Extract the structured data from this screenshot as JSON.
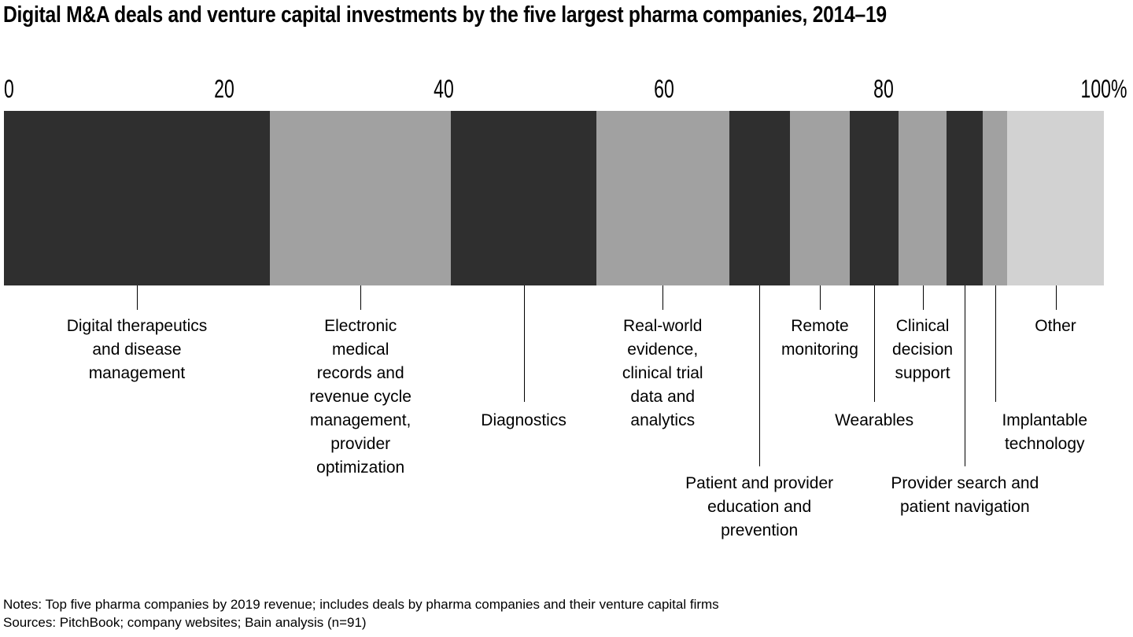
{
  "title": "Digital M&A deals and venture capital investments by the five largest pharma companies, 2014–19",
  "footer": {
    "notes": "Notes: Top five pharma companies by 2019 revenue; includes deals by pharma companies and their venture capital firms",
    "sources": "Sources: PitchBook; company websites; Bain analysis (n=91)"
  },
  "palette": {
    "dark": "#2f2f2f",
    "gray": "#a1a1a1",
    "light": "#d2d2d2"
  },
  "chart_data": {
    "type": "bar",
    "subtype": "horizontal-stacked-100-percent",
    "title": "Digital M&A deals and venture capital investments by the five largest pharma companies, 2014–19",
    "xlabel": "",
    "ylabel": "",
    "xlim": [
      0,
      100
    ],
    "grid": false,
    "legend_position": "below-bar-callout-labels",
    "axis_ticks": [
      {
        "label": "0",
        "value": 0
      },
      {
        "label": "20",
        "value": 20
      },
      {
        "label": "40",
        "value": 40
      },
      {
        "label": "60",
        "value": 60
      },
      {
        "label": "80",
        "value": 80
      },
      {
        "label": "100%",
        "value": 100
      }
    ],
    "categories": [
      "Digital therapeutics and disease management",
      "Electronic medical records and revenue cycle management, provider optimization",
      "Diagnostics",
      "Real-world evidence, clinical trial data and analytics",
      "Patient and provider education and prevention",
      "Remote monitoring",
      "Wearables",
      "Clinical decision support",
      "Provider search and patient navigation",
      "Implantable technology",
      "Other"
    ],
    "values": [
      24.2,
      16.5,
      13.2,
      12.1,
      5.5,
      5.5,
      4.4,
      4.4,
      3.3,
      2.2,
      8.8
    ],
    "segments": [
      {
        "label": "Digital therapeutics and disease management",
        "value": 24.2,
        "color": "dark",
        "row": 1,
        "dx": 0,
        "lines": [
          "Digital therapeutics",
          "and disease",
          "management"
        ]
      },
      {
        "label": "Electronic medical records and revenue cycle management, provider optimization",
        "value": 16.5,
        "color": "gray",
        "row": 1,
        "dx": 0,
        "lines": [
          "Electronic",
          "medical",
          "records and",
          "revenue cycle",
          "management,",
          "provider",
          "optimization"
        ]
      },
      {
        "label": "Diagnostics",
        "value": 13.2,
        "color": "dark",
        "row": 2,
        "dx": 0,
        "lines": [
          "Diagnostics"
        ]
      },
      {
        "label": "Real-world evidence, clinical trial data and analytics",
        "value": 12.1,
        "color": "gray",
        "row": 1,
        "dx": 0,
        "lines": [
          "Real-world",
          "evidence,",
          "clinical trial",
          "data and",
          "analytics"
        ]
      },
      {
        "label": "Patient and provider education and prevention",
        "value": 5.5,
        "color": "dark",
        "row": 3,
        "dx": 0,
        "lines": [
          "Patient and provider",
          "education and",
          "prevention"
        ]
      },
      {
        "label": "Remote monitoring",
        "value": 5.5,
        "color": "gray",
        "row": 1,
        "dx": 0,
        "lines": [
          "Remote",
          "monitoring"
        ]
      },
      {
        "label": "Wearables",
        "value": 4.4,
        "color": "dark",
        "row": 2,
        "dx": 0,
        "lines": [
          "Wearables"
        ]
      },
      {
        "label": "Clinical decision support",
        "value": 4.4,
        "color": "gray",
        "row": 1,
        "dx": 0,
        "lines": [
          "Clinical",
          "decision",
          "support"
        ]
      },
      {
        "label": "Provider search and patient navigation",
        "value": 3.3,
        "color": "dark",
        "row": 3,
        "dx": 0,
        "lines": [
          "Provider search and",
          "patient navigation"
        ]
      },
      {
        "label": "Implantable technology",
        "value": 2.2,
        "color": "gray",
        "row": 2,
        "dx": 63,
        "lines": [
          "Implantable",
          "technology"
        ]
      },
      {
        "label": "Other",
        "value": 8.8,
        "color": "light",
        "row": 1,
        "dx": 0,
        "lines": [
          "Other"
        ]
      }
    ]
  }
}
